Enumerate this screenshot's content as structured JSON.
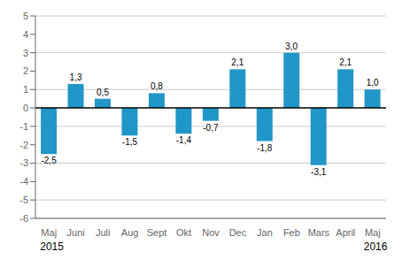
{
  "chart_data": {
    "type": "bar",
    "categories": [
      "Maj",
      "Juni",
      "Juli",
      "Aug",
      "Sept",
      "Okt",
      "Nov",
      "Dec",
      "Jan",
      "Feb",
      "Mars",
      "April",
      "Maj"
    ],
    "values": [
      -2.5,
      1.3,
      0.5,
      -1.5,
      0.8,
      -1.4,
      -0.7,
      2.1,
      -1.8,
      3.0,
      -3.1,
      2.1,
      1.0
    ],
    "value_labels": [
      "-2,5",
      "1,3",
      "0,5",
      "-1,5",
      "0,8",
      "-1,4",
      "-0,7",
      "2,1",
      "-1,8",
      "3,0",
      "-3,1",
      "2,1",
      "1,0"
    ],
    "data_labels": true,
    "color": "#2196c8",
    "ylim": [
      -6,
      5
    ],
    "yticks": [
      -6,
      -5,
      -4,
      -3,
      -2,
      -1,
      0,
      1,
      2,
      3,
      4,
      5
    ],
    "grid": true,
    "annotations": [
      {
        "text": "2015",
        "category_index": 0
      },
      {
        "text": "2016",
        "category_index": 12
      }
    ]
  }
}
